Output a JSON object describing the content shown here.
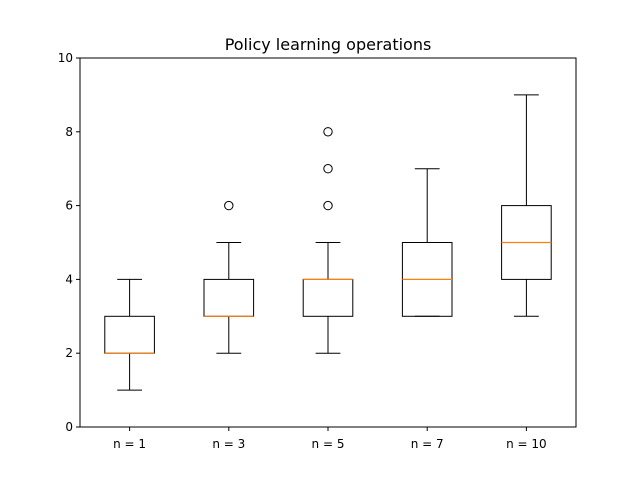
{
  "chart_data": {
    "type": "box",
    "title": "Policy learning operations",
    "xlabel": "",
    "ylabel": "",
    "categories": [
      "n = 1",
      "n = 3",
      "n = 5",
      "n = 7",
      "n = 10"
    ],
    "ylim": [
      0,
      10
    ],
    "yticks": [
      "0",
      "2",
      "4",
      "6",
      "8",
      "10"
    ],
    "grid": false,
    "boxes": [
      {
        "label": "n = 1",
        "whisker_low": 1,
        "q1": 2,
        "median": 2,
        "q3": 3,
        "whisker_high": 4,
        "outliers": []
      },
      {
        "label": "n = 3",
        "whisker_low": 2,
        "q1": 3,
        "median": 3,
        "q3": 4,
        "whisker_high": 5,
        "outliers": [
          6
        ]
      },
      {
        "label": "n = 5",
        "whisker_low": 2,
        "q1": 3,
        "median": 4,
        "q3": 4,
        "whisker_high": 5,
        "outliers": [
          6,
          7,
          8
        ]
      },
      {
        "label": "n = 7",
        "whisker_low": 3,
        "q1": 3,
        "median": 4,
        "q3": 5,
        "whisker_high": 7,
        "outliers": []
      },
      {
        "label": "n = 10",
        "whisker_low": 3,
        "q1": 4,
        "median": 5,
        "q3": 6,
        "whisker_high": 9,
        "outliers": []
      }
    ],
    "colors": {
      "box": "#000000",
      "median": "#ff7f0e",
      "outlier": "#000000"
    }
  }
}
